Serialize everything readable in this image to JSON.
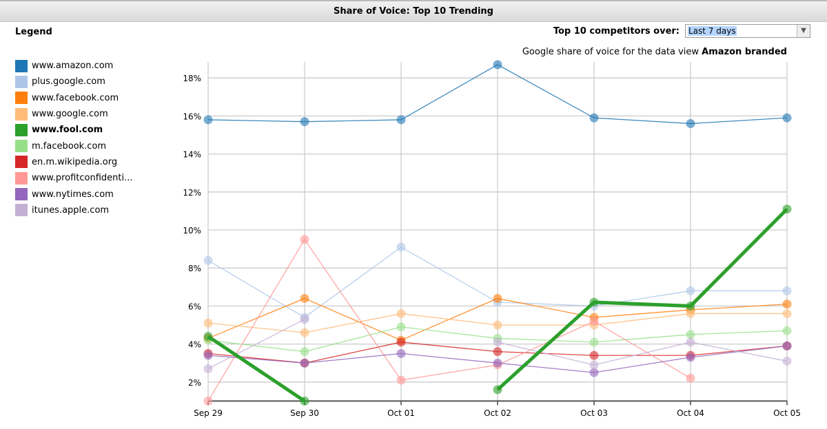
{
  "header": {
    "title": "Share of Voice: Top 10 Trending"
  },
  "legend": {
    "title": "Legend"
  },
  "controls": {
    "label": "Top 10 competitors over:",
    "selected": "Last 7 days"
  },
  "subtitle": {
    "prefix": "Google share of voice for the data view ",
    "bold": "Amazon branded"
  },
  "chart_data": {
    "type": "line",
    "x": [
      "Sep 29",
      "Sep 30",
      "Oct 01",
      "Oct 02",
      "Oct 03",
      "Oct 04",
      "Oct 05"
    ],
    "yticks": [
      "2%",
      "4%",
      "6%",
      "8%",
      "10%",
      "12%",
      "14%",
      "16%",
      "18%"
    ],
    "ylim": [
      1,
      19
    ],
    "grid": true,
    "legend_position": "left",
    "highlighted": "www.fool.com",
    "series": [
      {
        "name": "www.amazon.com",
        "color": "#1f77b4",
        "values": [
          15.8,
          15.7,
          15.8,
          18.7,
          15.9,
          15.6,
          15.9
        ]
      },
      {
        "name": "plus.google.com",
        "color": "#aec7e8",
        "values": [
          8.4,
          5.4,
          9.1,
          6.2,
          6.0,
          6.8,
          6.8
        ]
      },
      {
        "name": "www.facebook.com",
        "color": "#ff7f0e",
        "values": [
          4.3,
          6.4,
          4.2,
          6.4,
          5.4,
          5.8,
          6.1
        ]
      },
      {
        "name": "www.google.com",
        "color": "#ffbb78",
        "values": [
          5.1,
          4.6,
          5.6,
          5.0,
          5.0,
          5.6,
          5.6
        ]
      },
      {
        "name": "www.fool.com",
        "color": "#2ca02c",
        "values": [
          4.4,
          1.0,
          null,
          1.6,
          6.2,
          6.0,
          11.1
        ]
      },
      {
        "name": "m.facebook.com",
        "color": "#98df8a",
        "values": [
          4.2,
          3.6,
          4.9,
          4.3,
          4.1,
          4.5,
          4.7
        ]
      },
      {
        "name": "en.m.wikipedia.org",
        "color": "#d62728",
        "values": [
          3.5,
          3.0,
          4.1,
          3.6,
          3.4,
          3.4,
          3.9
        ]
      },
      {
        "name": "www.profitconfidenti...",
        "color": "#ff9896",
        "values": [
          1.0,
          9.5,
          2.1,
          2.9,
          5.2,
          2.2,
          null
        ]
      },
      {
        "name": "www.nytimes.com",
        "color": "#9467bd",
        "values": [
          3.4,
          3.0,
          3.5,
          3.0,
          2.5,
          3.3,
          3.9
        ]
      },
      {
        "name": "itunes.apple.com",
        "color": "#c5b0d5",
        "values": [
          2.7,
          5.3,
          null,
          4.1,
          2.9,
          4.1,
          3.1
        ]
      }
    ]
  }
}
